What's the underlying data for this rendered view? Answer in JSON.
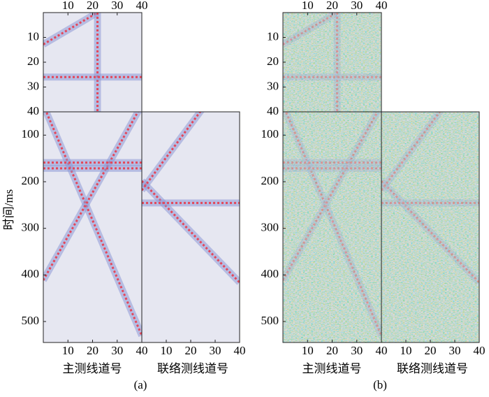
{
  "ylabel": "时间/ms",
  "figures": [
    {
      "caption": "(a)",
      "inline_label": "主测线道号",
      "crossline_label": "联络测线道号",
      "time_slice": {
        "xlim": [
          0,
          40
        ],
        "xticks": [
          10,
          20,
          30,
          40
        ],
        "ylim": [
          0,
          40
        ],
        "yticks": [
          10,
          20,
          30,
          40
        ]
      },
      "inline": {
        "xlim": [
          0,
          40
        ],
        "xticks": [
          10,
          20,
          30,
          40
        ],
        "ylim": [
          50,
          545
        ],
        "yticks": [
          100,
          200,
          300,
          400,
          500
        ]
      },
      "crossline": {
        "xlim": [
          0,
          40
        ],
        "xticks": [
          10,
          20,
          30,
          40
        ],
        "ylim": [
          50,
          545
        ]
      }
    },
    {
      "caption": "(b)",
      "inline_label": "主测线道号",
      "crossline_label": "联络测线道号",
      "time_slice": {
        "xlim": [
          0,
          40
        ],
        "xticks": [
          10,
          20,
          30,
          40
        ],
        "ylim": [
          0,
          40
        ],
        "yticks": [
          10,
          20,
          30,
          40
        ]
      },
      "inline": {
        "xlim": [
          0,
          40
        ],
        "xticks": [
          10,
          20,
          30,
          40
        ],
        "ylim": [
          50,
          545
        ],
        "yticks": [
          100,
          200,
          300,
          400,
          500
        ]
      },
      "crossline": {
        "xlim": [
          0,
          40
        ],
        "xticks": [
          10,
          20,
          30,
          40
        ],
        "ylim": [
          50,
          545
        ]
      }
    }
  ]
}
